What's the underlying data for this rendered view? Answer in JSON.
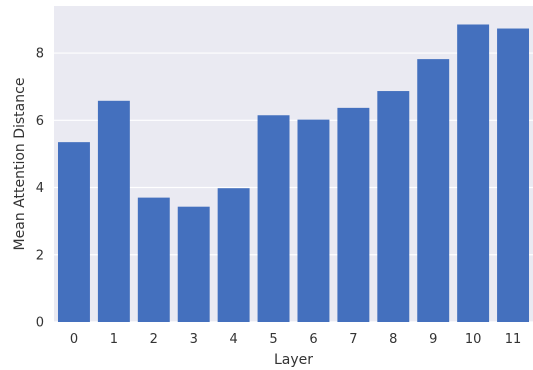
{
  "colors": {
    "plot_background": "#eaeaf2",
    "grid": "#ffffff",
    "bar": "#4470be",
    "text": "#333333",
    "page_background": "#ffffff"
  },
  "chart_data": {
    "type": "bar",
    "title": "",
    "xlabel": "Layer",
    "ylabel": "Mean Attention Distance",
    "categories": [
      "0",
      "1",
      "2",
      "3",
      "4",
      "5",
      "6",
      "7",
      "8",
      "9",
      "10",
      "11"
    ],
    "values": [
      5.35,
      6.58,
      3.7,
      3.43,
      3.98,
      6.15,
      6.02,
      6.37,
      6.87,
      7.82,
      8.85,
      8.73
    ],
    "ylim": [
      0,
      9.4
    ],
    "yticks": [
      0,
      2,
      4,
      6,
      8
    ],
    "grid": true
  }
}
